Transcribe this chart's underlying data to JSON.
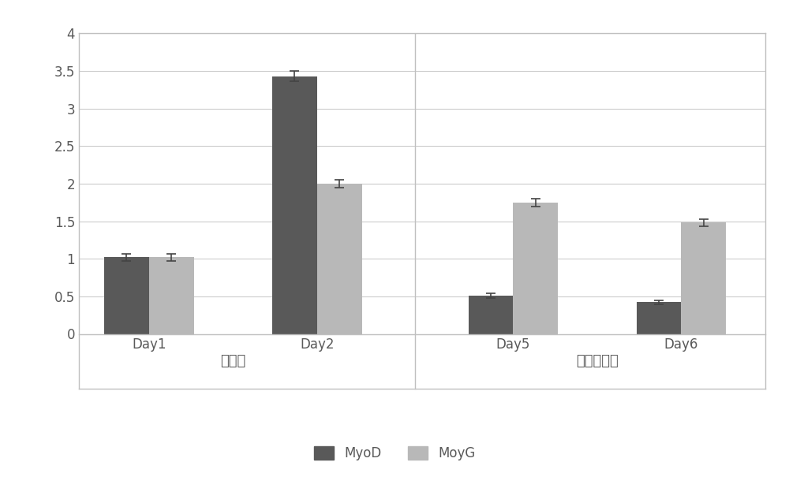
{
  "groups": [
    "Day1",
    "Day2",
    "Day5",
    "Day6"
  ],
  "myod_values": [
    1.02,
    3.43,
    0.51,
    0.42
  ],
  "moyg_values": [
    1.02,
    2.0,
    1.75,
    1.48
  ],
  "myod_errors": [
    0.05,
    0.07,
    0.03,
    0.03
  ],
  "moyg_errors": [
    0.05,
    0.05,
    0.05,
    0.05
  ],
  "myod_color": "#595959",
  "moyg_color": "#b8b8b8",
  "ylim": [
    0,
    4
  ],
  "yticks": [
    0,
    0.5,
    1.0,
    1.5,
    2.0,
    2.5,
    3.0,
    3.5,
    4.0
  ],
  "ytick_labels": [
    "0",
    "0.5",
    "1",
    "1.5",
    "2",
    "2.5",
    "3",
    "3.5",
    "4"
  ],
  "group1_label": "未分化",
  "group2_label": "分化培废基",
  "legend_myod": "MyoD",
  "legend_moyg": "MoyG",
  "bar_width": 0.32,
  "background_color": "#ffffff",
  "grid_color": "#cccccc",
  "text_color": "#595959",
  "border_color": "#c0c0c0",
  "font_size": 12,
  "positions": [
    0.5,
    1.7,
    3.1,
    4.3
  ]
}
